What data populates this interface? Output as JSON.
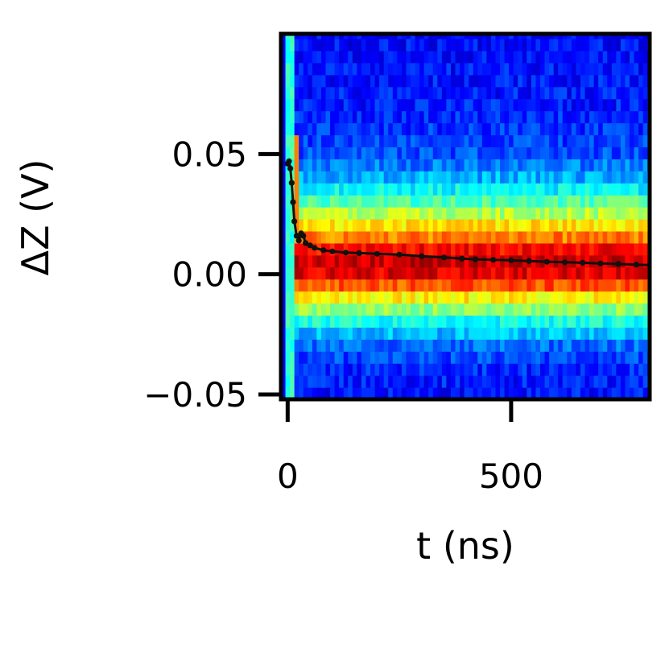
{
  "chart_data": {
    "type": "heatmap",
    "title": "",
    "xlabel": "t (ns)",
    "ylabel": "ΔZ (V)",
    "xlim": [
      -15,
      810
    ],
    "ylim": [
      -0.052,
      0.1
    ],
    "x_ticks": [
      {
        "value": 0,
        "label": "0"
      },
      {
        "value": 500,
        "label": "500"
      }
    ],
    "y_ticks": [
      {
        "value": 0.05,
        "label": "0.05"
      },
      {
        "value": 0.0,
        "label": "0.00"
      },
      {
        "value": -0.05,
        "label": "−0.05"
      }
    ],
    "colormap": "jet",
    "colormap_stops": [
      "#00007f",
      "#0000ff",
      "#007fff",
      "#00ffff",
      "#7fff7f",
      "#ffff00",
      "#ff7f00",
      "#ff0000",
      "#7f0000"
    ],
    "band_profile": {
      "description_values_dZ_V": [
        -0.05,
        -0.04,
        -0.03,
        -0.02,
        -0.015,
        -0.01,
        -0.005,
        0.0,
        0.005,
        0.01,
        0.015,
        0.02,
        0.025,
        0.03,
        0.035,
        0.04,
        0.05,
        0.07,
        0.1
      ],
      "intensity": [
        0.14,
        0.16,
        0.22,
        0.38,
        0.5,
        0.62,
        0.78,
        0.9,
        0.93,
        0.88,
        0.76,
        0.66,
        0.56,
        0.46,
        0.38,
        0.3,
        0.2,
        0.15,
        0.13
      ]
    },
    "series": [
      {
        "marker": "dot",
        "color": "#111111",
        "x": [
          0,
          3,
          6,
          9,
          12,
          15,
          20,
          25,
          30,
          35,
          40,
          50,
          60,
          80,
          100,
          130,
          160,
          200,
          250,
          300,
          350,
          390,
          420,
          460,
          500,
          540,
          580,
          620,
          660,
          700,
          740,
          780,
          810
        ],
        "y": [
          0.046,
          0.047,
          0.044,
          0.038,
          0.03,
          0.022,
          0.016,
          0.014,
          0.017,
          0.016,
          0.013,
          0.012,
          0.011,
          0.01,
          0.0095,
          0.009,
          0.0088,
          0.0085,
          0.0082,
          0.0075,
          0.007,
          0.0065,
          0.0062,
          0.006,
          0.0058,
          0.0055,
          0.0052,
          0.005,
          0.0048,
          0.0045,
          0.0043,
          0.004,
          0.0038
        ]
      }
    ],
    "grid": false,
    "legend": "none"
  }
}
